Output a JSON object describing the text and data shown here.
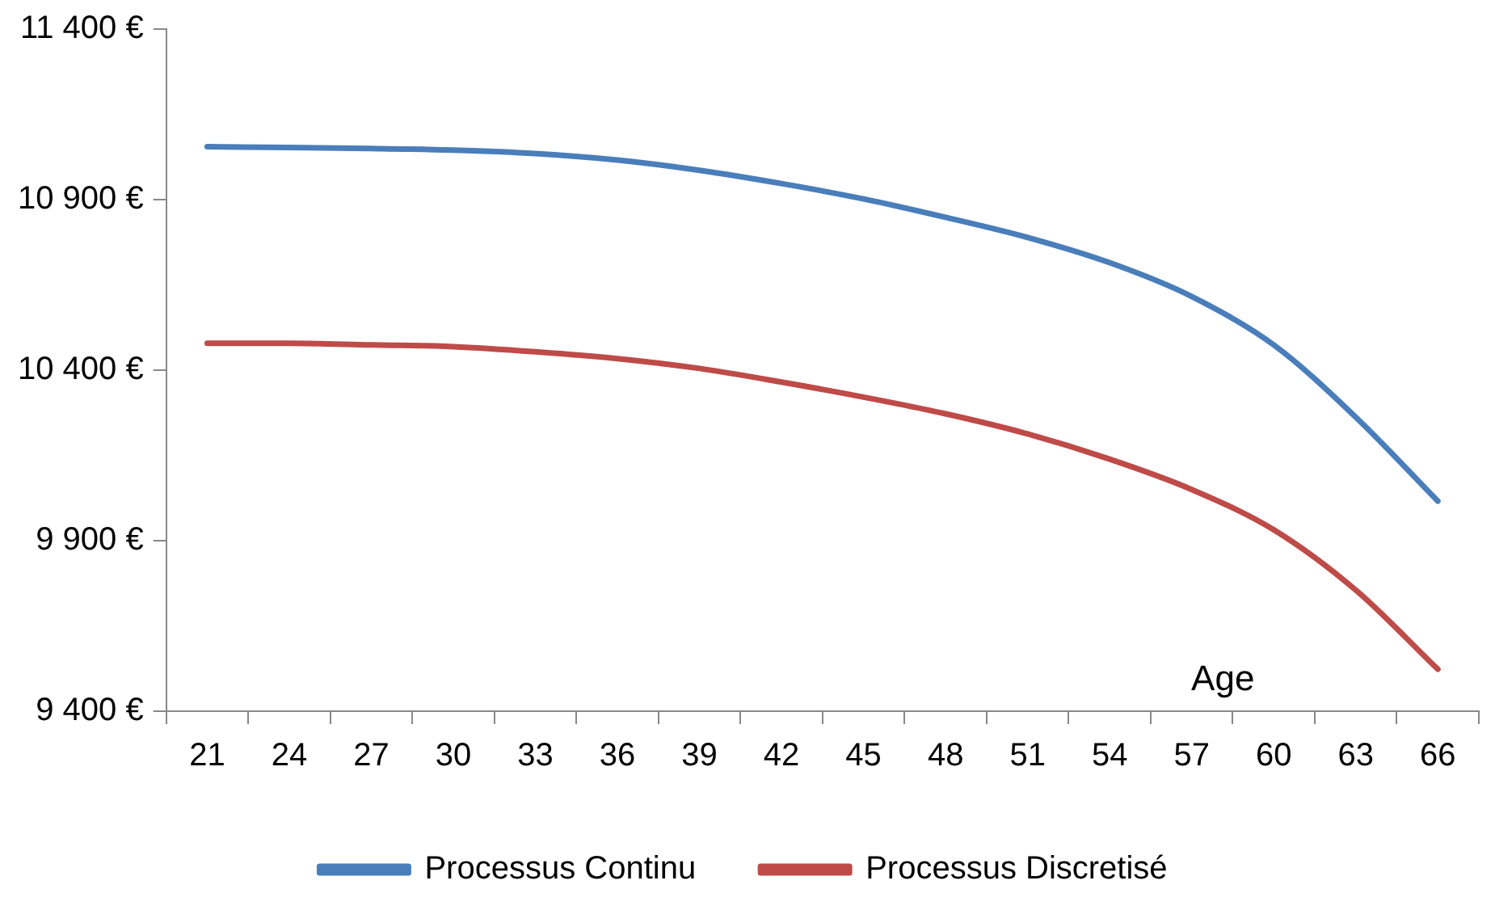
{
  "chart_data": {
    "type": "line",
    "xlabel": "Age",
    "categories": [
      "21",
      "24",
      "27",
      "30",
      "33",
      "36",
      "39",
      "42",
      "45",
      "48",
      "51",
      "54",
      "57",
      "60",
      "63",
      "66"
    ],
    "series": [
      {
        "name": "Processus Continu",
        "color": "#4a7ebb",
        "values": [
          11055,
          11053,
          11050,
          11045,
          11035,
          11016,
          10986,
          10947,
          10902,
          10848,
          10789,
          10715,
          10616,
          10474,
          10262,
          10016
        ]
      },
      {
        "name": "Processus Discretisé",
        "color": "#be4b48",
        "values": [
          10479,
          10479,
          10474,
          10469,
          10454,
          10434,
          10405,
          10365,
          10321,
          10272,
          10213,
          10139,
          10050,
          9932,
          9755,
          9523
        ]
      }
    ],
    "ylim": [
      9400,
      11400
    ],
    "yticks": [
      {
        "value": 9400,
        "label": "9 400 €"
      },
      {
        "value": 9900,
        "label": "9 900 €"
      },
      {
        "value": 10400,
        "label": "10 400 €"
      },
      {
        "value": 10900,
        "label": "10 900 €"
      },
      {
        "value": 11400,
        "label": "11 400 €"
      }
    ],
    "grid": false,
    "legend": "bottom",
    "marker": "none",
    "line_style": "solid"
  }
}
